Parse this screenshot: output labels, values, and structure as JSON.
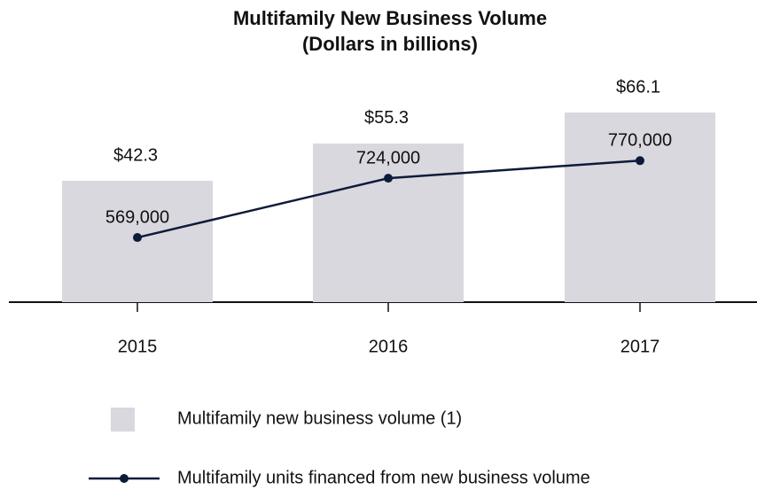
{
  "chart_data": {
    "type": "combo",
    "title": "Multifamily New Business Volume",
    "subtitle": "(Dollars in billions)",
    "categories": [
      "2015",
      "2016",
      "2017"
    ],
    "ylim": [
      0,
      80
    ],
    "y2lim": [
      400000,
      1000000
    ],
    "series": [
      {
        "name": "Multifamily new business volume (1)",
        "type": "bar",
        "color": "#d9d8de",
        "values": [
          42.3,
          55.3,
          66.1
        ],
        "value_labels": [
          "$42.3",
          "$55.3",
          "$66.1"
        ]
      },
      {
        "name": "Multifamily units financed from new business volume",
        "type": "line",
        "axis": "y2",
        "color": "#0d1b3a",
        "values": [
          569000,
          724000,
          770000
        ],
        "value_labels": [
          "569,000",
          "724,000",
          "770,000"
        ]
      }
    ]
  }
}
